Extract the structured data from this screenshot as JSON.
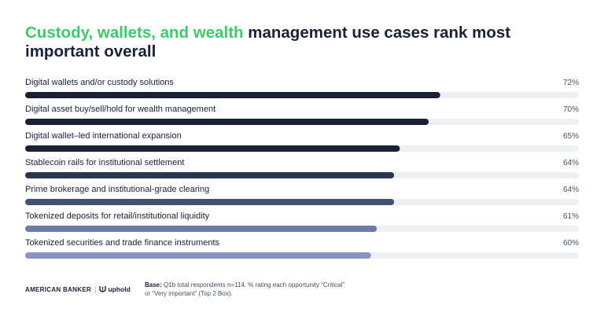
{
  "title": {
    "highlight": "Custody, wallets, and wealth",
    "rest": " management use cases rank most important overall",
    "accent_color": "#3ec96a"
  },
  "chart_data": {
    "type": "bar",
    "orientation": "horizontal",
    "categories": [
      "Digital wallets and/or custody solutions",
      "Digital asset buy/sell/hold for wealth management",
      "Digital wallet–led international expansion",
      "Stablecoin rails for institutional settlement",
      "Prime brokerage and institutional-grade clearing",
      "Tokenized deposits for retail/institutional liquidity",
      "Tokenized securities and trade finance instruments"
    ],
    "values": [
      72,
      70,
      65,
      64,
      64,
      61,
      60
    ],
    "value_labels": [
      "72%",
      "70%",
      "65%",
      "64%",
      "64%",
      "61%",
      "60%"
    ],
    "xlim": [
      0,
      100
    ],
    "grid": false,
    "bar_colors": [
      "#1a2136",
      "#1a2136",
      "#1a2136",
      "#2c3652",
      "#435273",
      "#6e7ba6",
      "#8796c0"
    ],
    "track_color": "#eef0f4"
  },
  "footer": {
    "brand_left": "AMERICAN BANKER",
    "brand_right": "uphold",
    "base_label": "Base:",
    "base_text": " Q1b total respondents n=114. % rating each opportunity “Critical” or “Very important” (Top 2 Box)."
  }
}
